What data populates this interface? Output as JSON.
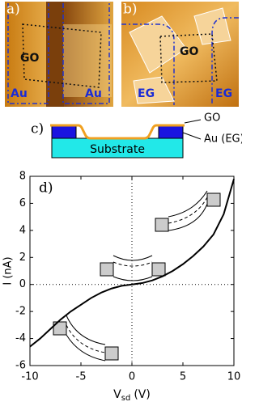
{
  "panels": {
    "a": {
      "label": "a)",
      "region": "GO",
      "left": "Au",
      "right": "Au"
    },
    "b": {
      "label": "b)",
      "region": "GO",
      "left": "EG",
      "right": "EG"
    },
    "c": {
      "label": "c)",
      "substrate": "Substrate",
      "top": "GO",
      "side": "Au (EG)"
    }
  },
  "chart_data": {
    "type": "line",
    "label": "d)",
    "ylabel": "I (nA)",
    "xlabel": {
      "main": "V",
      "sub": "sd",
      "unit": "(V)"
    },
    "x": [
      -10,
      -9,
      -8,
      -7,
      -6,
      -5,
      -4,
      -3,
      -2,
      -1,
      0,
      1,
      2,
      3,
      4,
      5,
      6,
      7,
      8,
      9,
      10
    ],
    "series": [
      {
        "color": "#000000",
        "values": [
          -4.6,
          -4.0,
          -3.3,
          -2.6,
          -2.0,
          -1.5,
          -1.0,
          -0.6,
          -0.3,
          -0.1,
          0,
          0.1,
          0.3,
          0.6,
          1.0,
          1.5,
          2.1,
          2.8,
          3.7,
          5.2,
          7.8
        ]
      }
    ],
    "xlim": [
      -10,
      10
    ],
    "ylim": [
      -6,
      8
    ],
    "xticks": [
      -10,
      -5,
      0,
      5,
      10
    ],
    "yticks": [
      -6,
      -4,
      -2,
      0,
      2,
      4,
      6,
      8
    ]
  }
}
